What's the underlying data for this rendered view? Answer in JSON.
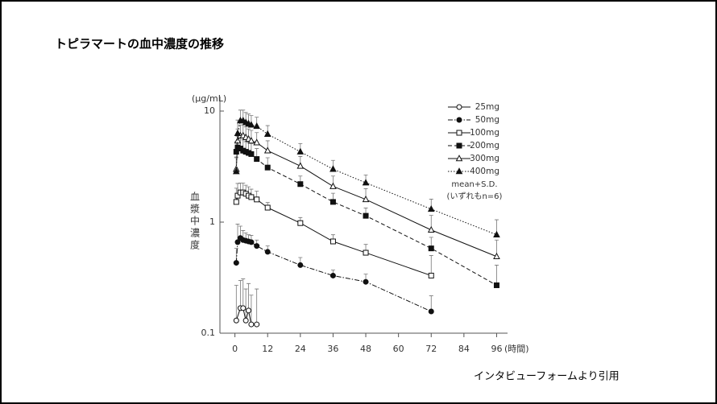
{
  "chart_data": {
    "type": "line",
    "title": "トピラマートの血中濃度の推移",
    "y_unit_label": "(μg/mL)",
    "y_axis_label": "血漿中濃度",
    "x_axis_label": "(時間)",
    "note": [
      "mean+S.D.",
      "(いずれもn=6)"
    ],
    "source": "インタビューフォームより引用",
    "log_y": true,
    "xlim": [
      -5.5,
      100
    ],
    "ylim": [
      0.1,
      10
    ],
    "xticks": [
      0,
      12,
      24,
      36,
      48,
      60,
      72,
      84,
      96
    ],
    "yticks": [
      0.1,
      1,
      10
    ],
    "legend": "upper right",
    "series": [
      {
        "name": "25mg",
        "color": "#111111",
        "marker": "circle-open",
        "line_style": "solid",
        "x": [
          0.5,
          2,
          3,
          4,
          5,
          6,
          8
        ],
        "values": [
          0.13,
          0.168,
          0.168,
          0.13,
          0.16,
          0.12,
          0.12
        ],
        "errors": [
          0.14,
          0.13,
          0.14,
          0.12,
          0.12,
          0.1,
          0.13
        ]
      },
      {
        "name": "50mg",
        "color": "#111111",
        "marker": "circle-filled",
        "line_style": "dashdot",
        "x": [
          0.5,
          1,
          2,
          3,
          4,
          5,
          6,
          8,
          12,
          24,
          36,
          48,
          72
        ],
        "values": [
          0.43,
          0.66,
          0.72,
          0.69,
          0.68,
          0.67,
          0.66,
          0.61,
          0.54,
          0.41,
          0.33,
          0.29,
          0.157
        ],
        "errors": [
          0.15,
          0.3,
          0.2,
          0.15,
          0.12,
          0.1,
          0.1,
          0.08,
          0.07,
          0.07,
          0.04,
          0.05,
          0.06
        ]
      },
      {
        "name": "100mg",
        "color": "#111111",
        "marker": "square-open",
        "line_style": "solid",
        "x": [
          0.5,
          1,
          2,
          3,
          4,
          5,
          6,
          8,
          12,
          24,
          36,
          48,
          72
        ],
        "values": [
          1.52,
          1.73,
          1.85,
          1.85,
          1.8,
          1.73,
          1.68,
          1.6,
          1.35,
          0.98,
          0.67,
          0.53,
          0.33
        ],
        "errors": [
          0.5,
          0.5,
          0.4,
          0.4,
          0.35,
          0.35,
          0.3,
          0.3,
          0.15,
          0.12,
          0.1,
          0.1,
          0.17
        ]
      },
      {
        "name": "200mg",
        "color": "#111111",
        "marker": "square-filled",
        "line_style": "dashed",
        "x": [
          0.5,
          1,
          2,
          3,
          4,
          5,
          6,
          8,
          12,
          24,
          36,
          48,
          72,
          96
        ],
        "values": [
          4.3,
          4.7,
          4.6,
          4.4,
          4.3,
          4.2,
          4.1,
          3.7,
          3.1,
          2.2,
          1.52,
          1.14,
          0.58,
          0.27
        ],
        "errors": [
          1.0,
          1.2,
          1.2,
          1.1,
          1.0,
          1.0,
          1.0,
          0.9,
          0.7,
          0.4,
          0.3,
          0.2,
          0.15,
          0.14
        ]
      },
      {
        "name": "300mg",
        "color": "#111111",
        "marker": "triangle-open",
        "line_style": "solid",
        "x": [
          0.5,
          1,
          2,
          3,
          4,
          5,
          6,
          8,
          12,
          24,
          36,
          48,
          72,
          96
        ],
        "values": [
          3.0,
          5.4,
          6.0,
          6.0,
          5.8,
          5.6,
          5.4,
          5.2,
          4.4,
          3.2,
          2.1,
          1.6,
          0.85,
          0.49
        ],
        "errors": [
          0.8,
          1.5,
          1.5,
          1.5,
          1.4,
          1.3,
          1.3,
          1.2,
          1.0,
          0.7,
          0.5,
          0.4,
          0.3,
          0.2
        ]
      },
      {
        "name": "400mg",
        "color": "#111111",
        "marker": "triangle-filled",
        "line_style": "dotted",
        "x": [
          0.5,
          1,
          2,
          3,
          4,
          5,
          6,
          8,
          12,
          24,
          36,
          48,
          72,
          96
        ],
        "values": [
          2.86,
          6.3,
          8.2,
          8.2,
          7.9,
          7.7,
          7.5,
          7.3,
          6.2,
          4.3,
          3.0,
          2.26,
          1.31,
          0.77
        ],
        "errors": [
          1.0,
          2.0,
          2.0,
          2.0,
          1.8,
          1.7,
          1.6,
          1.5,
          1.2,
          0.8,
          0.6,
          0.4,
          0.3,
          0.28
        ]
      }
    ]
  }
}
